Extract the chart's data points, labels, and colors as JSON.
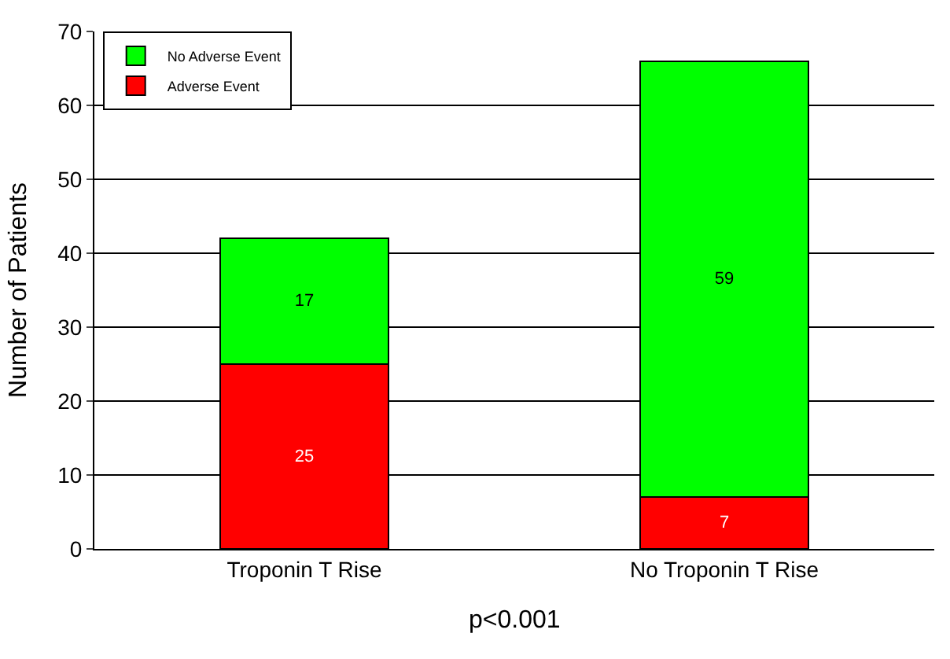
{
  "chart_data": {
    "type": "bar",
    "stacked": true,
    "ylabel": "Number of Patients",
    "categories": [
      "Troponin T Rise",
      "No Troponin T Rise"
    ],
    "series": [
      {
        "name": "Adverse Event",
        "color": "#ff0000",
        "values": [
          25,
          7
        ]
      },
      {
        "name": "No Adverse Event",
        "color": "#00ff00",
        "values": [
          17,
          59
        ]
      }
    ],
    "ylim": [
      0,
      70
    ],
    "yticks": [
      0,
      10,
      20,
      30,
      40,
      50,
      60,
      70
    ],
    "grid": "y",
    "legend": "top left",
    "data_labels": true,
    "annotations": [
      "p<0.001"
    ]
  }
}
